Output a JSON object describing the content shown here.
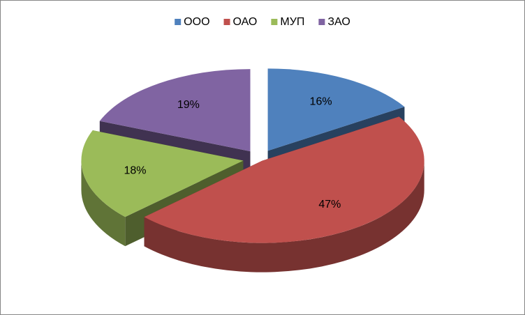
{
  "chart_data": {
    "type": "pie3d",
    "categories": [
      "ООО",
      "ОАО",
      "МУП",
      "ЗАО"
    ],
    "values": [
      16,
      47,
      18,
      19
    ],
    "value_labels": [
      "16%",
      "47%",
      "18%",
      "19%"
    ],
    "colors": [
      "#4f81bd",
      "#c0504d",
      "#9bbb59",
      "#8064a2"
    ],
    "legend": "top"
  }
}
